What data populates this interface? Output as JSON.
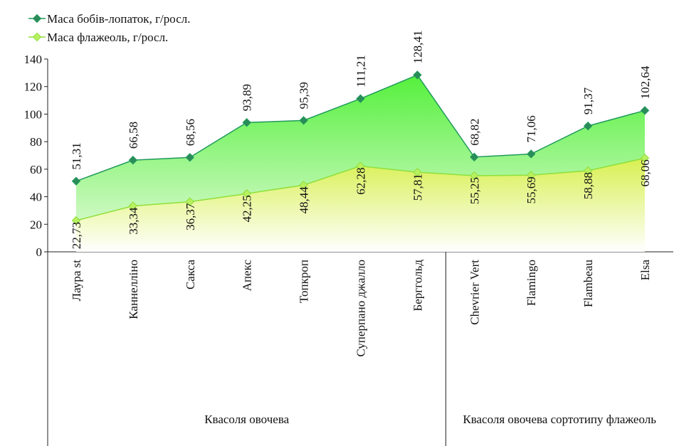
{
  "chart_data": {
    "type": "area",
    "categories": [
      "Лаура st",
      "Каннелліно",
      "Сакса",
      "Апекс",
      "Топкроп",
      "Суперпано джалло",
      "Берггольд",
      "Chevrier Vert",
      "Flamingo",
      "Flambeau",
      "Elsa"
    ],
    "groups": [
      "Квасоля овочева",
      "Квасоля овочева сортотипу флажеоль"
    ],
    "series": [
      {
        "name": "Маса бобів-лопаток, г/росл.",
        "color": "#1f9a5c",
        "marker_color": "#2b8c5a",
        "fill_top": "#55f03c",
        "fill_bottom": "#e8fbe0",
        "values": [
          51.31,
          66.58,
          68.56,
          93.89,
          95.39,
          111.21,
          128.41,
          68.82,
          71.06,
          91.37,
          102.64
        ],
        "value_labels": [
          "51,31",
          "66,58",
          "68,56",
          "93,89",
          "95,39",
          "111,21",
          "128,41",
          "68,82",
          "71,06",
          "91,37",
          "102,64"
        ]
      },
      {
        "name": "Маса флажеоль, г/росл.",
        "color": "#8ee03a",
        "marker_color": "#b8f060",
        "fill_top": "#d8f050",
        "fill_bottom": "#ffffff",
        "values": [
          22.73,
          33.34,
          36.37,
          42.25,
          48.44,
          62.28,
          57.81,
          55.25,
          55.69,
          58.88,
          68.06
        ],
        "value_labels": [
          "22,73",
          "33,34",
          "36,37",
          "42,25",
          "48,44",
          "62,28",
          "57,81",
          "55,25",
          "55,69",
          "58,88",
          "68,06"
        ]
      }
    ],
    "ylim": [
      0,
      140
    ],
    "yticks": [
      0,
      20,
      40,
      60,
      80,
      100,
      120,
      140
    ],
    "legend": "top-left"
  }
}
